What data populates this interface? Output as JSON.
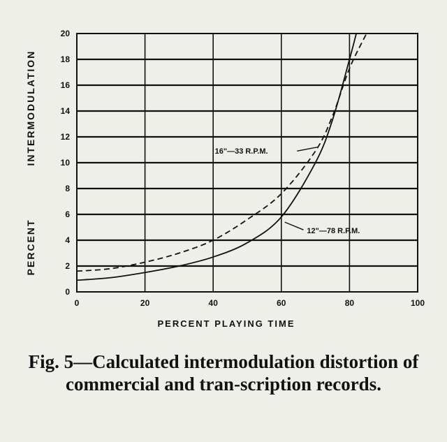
{
  "chart_data": {
    "type": "line",
    "xlabel": "PERCENT PLAYING TIME",
    "ylabel": "PERCENT INTERMODULATION",
    "xlim": [
      0,
      100
    ],
    "ylim": [
      0,
      20
    ],
    "x_ticks": [
      "0",
      "20",
      "40",
      "60",
      "80",
      "100"
    ],
    "y_ticks": [
      "0",
      "2",
      "4",
      "6",
      "8",
      "10",
      "12",
      "14",
      "16",
      "18",
      "20"
    ],
    "grid": true,
    "series": [
      {
        "name": "16\"—33 R.P.M.",
        "style": "dashed",
        "x": [
          0,
          10,
          20,
          30,
          40,
          50,
          60,
          70,
          75,
          80,
          85
        ],
        "y": [
          1.6,
          1.8,
          2.3,
          3.0,
          4.0,
          5.6,
          7.6,
          10.9,
          13.6,
          17.3,
          20.0
        ]
      },
      {
        "name": "12\"—78 R.P.M.",
        "style": "solid",
        "x": [
          0,
          10,
          20,
          30,
          40,
          50,
          60,
          70,
          75,
          80,
          82
        ],
        "y": [
          0.9,
          1.1,
          1.5,
          2.0,
          2.7,
          3.8,
          5.8,
          10.0,
          13.3,
          18.0,
          20.0
        ]
      }
    ]
  },
  "caption": "Fig. 5—Calculated intermodulation distortion of commercial and tran-scription records."
}
